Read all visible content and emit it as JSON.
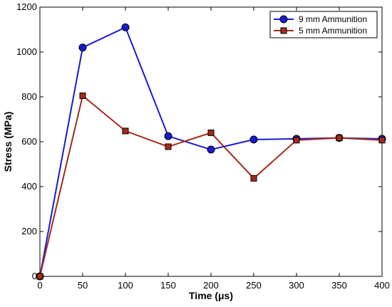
{
  "chart_data": {
    "type": "line",
    "title": "",
    "xlabel": "Time (μs)",
    "ylabel": "Stress (MPa)",
    "x": [
      0,
      50,
      100,
      150,
      200,
      250,
      300,
      350,
      400
    ],
    "xlim": [
      0,
      400
    ],
    "ylim": [
      0,
      1200
    ],
    "xticks": [
      "0",
      "50",
      "100",
      "150",
      "200",
      "250",
      "300",
      "350",
      "400"
    ],
    "yticks": [
      "0",
      "200",
      "400",
      "600",
      "800",
      "1000",
      "1200"
    ],
    "grid": false,
    "legend_position": "top-right",
    "series": [
      {
        "name": "9 mm Ammunition",
        "color": "#1a1ad6",
        "marker": "circle",
        "values": [
          0,
          1020,
          1110,
          625,
          565,
          610,
          613,
          617,
          613
        ]
      },
      {
        "name": "5 mm Ammunition",
        "color": "#a52a1a",
        "marker": "square",
        "values": [
          0,
          805,
          648,
          578,
          640,
          437,
          607,
          617,
          607
        ]
      }
    ]
  }
}
